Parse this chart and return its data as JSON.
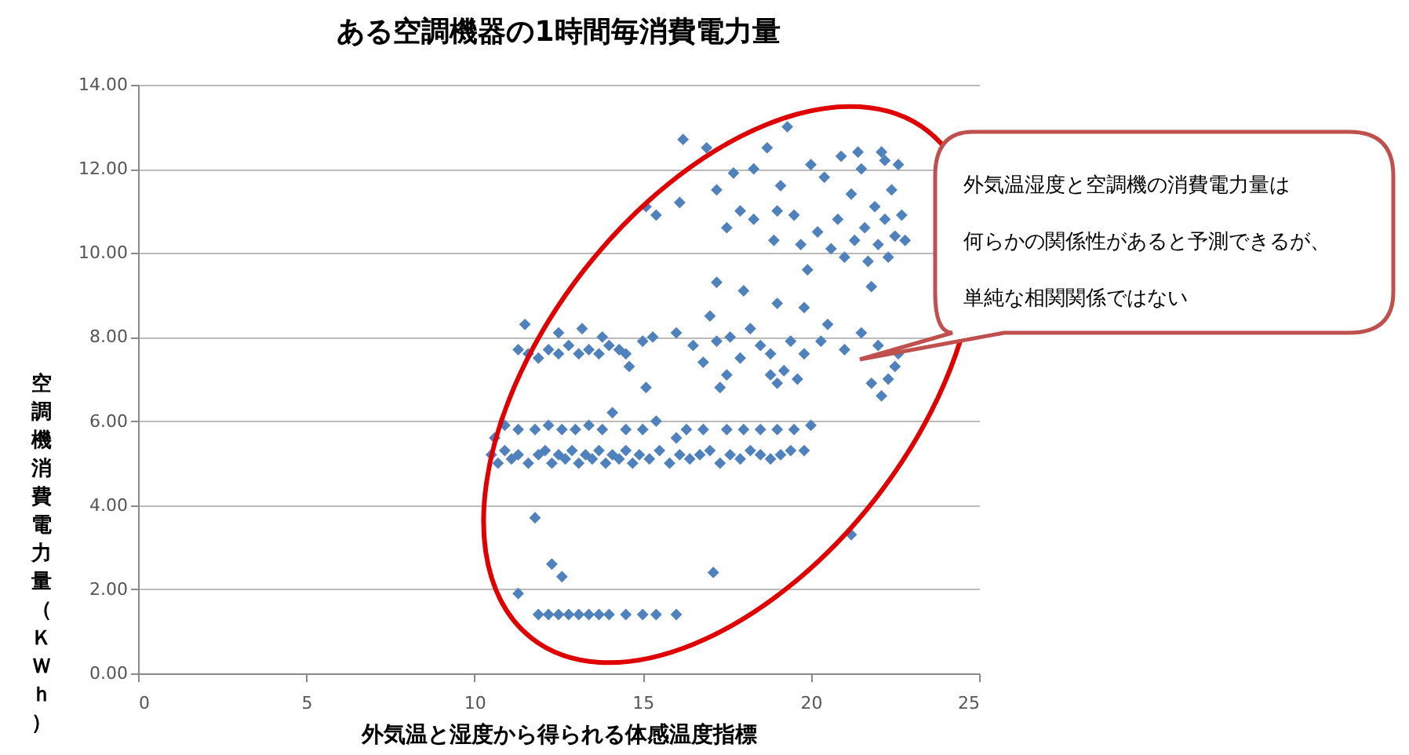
{
  "chart_data": {
    "type": "scatter",
    "title": "ある空調機器の1時間毎消費電力量",
    "xlabel": "外気温と湿度から得られる体感温度指標",
    "ylabel": "空調機消費電力量（ＫＷｈ）",
    "marker": "diamond",
    "grid": "y",
    "xlim": [
      0,
      25
    ],
    "xticks": [
      0,
      5,
      10,
      15,
      20,
      25
    ],
    "ylim": [
      0,
      14
    ],
    "yticks": [
      {
        "value": 0,
        "label": "0.00"
      },
      {
        "value": 2,
        "label": "2.00"
      },
      {
        "value": 4,
        "label": "4.00"
      },
      {
        "value": 6,
        "label": "6.00"
      },
      {
        "value": 8,
        "label": "8.00"
      },
      {
        "value": 10,
        "label": "10.00"
      },
      {
        "value": 12,
        "label": "12.00"
      },
      {
        "value": 14,
        "label": "14.00"
      }
    ],
    "annotations": [
      "外気温湿度と空調機の消費電力量は",
      "何らかの関係性があると予測できるが、",
      "単純な相関関係ではない"
    ],
    "series": [
      {
        "color": "#4f81bd",
        "x": [
          11.9,
          12.2,
          12.5,
          12.8,
          13.1,
          13.4,
          13.7,
          14.0,
          14.5,
          15.0,
          15.4,
          16.0,
          11.3,
          12.3,
          12.6,
          17.1,
          21.2,
          11.8,
          10.5,
          10.7,
          10.9,
          11.1,
          11.3,
          11.6,
          11.9,
          12.1,
          12.3,
          12.5,
          12.7,
          12.9,
          13.1,
          13.3,
          13.5,
          13.7,
          13.9,
          14.1,
          14.3,
          14.5,
          14.7,
          14.9,
          15.2,
          15.5,
          15.8,
          16.1,
          16.4,
          16.7,
          17.0,
          17.3,
          17.6,
          17.9,
          18.2,
          18.5,
          18.8,
          19.1,
          19.4,
          19.8,
          10.6,
          10.9,
          11.3,
          11.8,
          12.2,
          12.6,
          13.0,
          13.4,
          13.8,
          14.1,
          14.5,
          15.0,
          15.4,
          16.3,
          16.8,
          17.5,
          18.0,
          18.5,
          19.0,
          19.5,
          20.0,
          16.0,
          11.3,
          11.6,
          11.9,
          12.2,
          12.5,
          12.8,
          13.1,
          13.4,
          13.7,
          14.0,
          14.3,
          11.5,
          12.5,
          13.2,
          14.5,
          13.8,
          14.6,
          15.0,
          15.3,
          15.1,
          16.0,
          16.5,
          16.8,
          17.2,
          17.6,
          17.9,
          18.2,
          18.5,
          18.8,
          19.0,
          19.2,
          19.4,
          19.6,
          19.8,
          17.5,
          17.3,
          18.8,
          20.3,
          21.0,
          21.5,
          22.0,
          22.5,
          22.3,
          21.8,
          22.1,
          22.6,
          17.2,
          18.0,
          19.0,
          19.8,
          20.5,
          21.8,
          17.0,
          15.1,
          15.4,
          16.1,
          16.2,
          16.9,
          17.2,
          17.7,
          17.5,
          17.9,
          18.3,
          18.7,
          18.9,
          19.3,
          19.1,
          19.5,
          19.7,
          19.9,
          20.2,
          20.4,
          20.6,
          20.8,
          20.9,
          21.0,
          21.2,
          21.3,
          21.5,
          21.6,
          21.7,
          21.9,
          22.0,
          22.1,
          22.2,
          22.3,
          22.4,
          22.5,
          22.6,
          22.7,
          22.8,
          20.0,
          19.0,
          18.3,
          21.4,
          22.2
        ],
        "values": [
          1.4,
          1.4,
          1.4,
          1.4,
          1.4,
          1.4,
          1.4,
          1.4,
          1.4,
          1.4,
          1.4,
          1.4,
          1.9,
          2.6,
          2.3,
          2.4,
          3.3,
          3.7,
          5.2,
          5.0,
          5.3,
          5.1,
          5.2,
          5.0,
          5.2,
          5.3,
          5.0,
          5.2,
          5.1,
          5.3,
          5.0,
          5.2,
          5.1,
          5.3,
          5.0,
          5.2,
          5.1,
          5.3,
          5.0,
          5.2,
          5.1,
          5.3,
          5.0,
          5.2,
          5.1,
          5.2,
          5.3,
          5.0,
          5.2,
          5.1,
          5.3,
          5.2,
          5.1,
          5.2,
          5.3,
          5.3,
          5.6,
          5.9,
          5.8,
          5.8,
          5.9,
          5.8,
          5.8,
          5.9,
          5.8,
          6.2,
          5.8,
          5.8,
          6.0,
          5.8,
          5.8,
          5.8,
          5.8,
          5.8,
          5.8,
          5.8,
          5.9,
          5.6,
          7.7,
          7.6,
          7.5,
          7.7,
          7.6,
          7.8,
          7.6,
          7.7,
          7.6,
          7.8,
          7.7,
          8.3,
          8.1,
          8.2,
          7.6,
          8.0,
          7.3,
          7.9,
          8.0,
          6.8,
          8.1,
          7.8,
          7.4,
          7.9,
          8.0,
          7.5,
          8.2,
          7.8,
          7.6,
          6.9,
          7.2,
          7.9,
          7.0,
          7.6,
          7.1,
          6.8,
          7.1,
          7.9,
          7.7,
          8.1,
          7.8,
          7.3,
          7.0,
          6.9,
          6.6,
          7.6,
          9.3,
          9.1,
          8.8,
          8.7,
          8.3,
          9.2,
          8.5,
          11.1,
          10.9,
          11.2,
          12.7,
          12.5,
          11.5,
          11.9,
          10.6,
          11.0,
          10.8,
          12.5,
          10.3,
          13.0,
          11.6,
          10.9,
          10.2,
          9.6,
          10.5,
          11.8,
          10.1,
          10.8,
          12.3,
          9.9,
          11.4,
          10.3,
          12.0,
          10.6,
          9.8,
          11.1,
          10.2,
          12.4,
          10.8,
          9.9,
          11.5,
          10.4,
          12.1,
          10.9,
          10.3,
          12.1,
          11.0,
          12.0,
          12.4,
          12.2
        ]
      }
    ]
  }
}
